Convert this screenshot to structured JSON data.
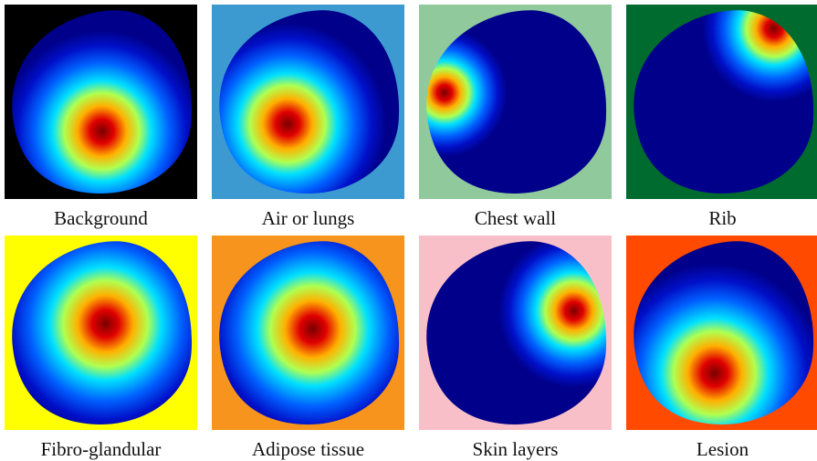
{
  "panels": [
    {
      "caption": "Background"
    },
    {
      "caption": "Air or lungs"
    },
    {
      "caption": "Chest wall"
    },
    {
      "caption": "Rib"
    },
    {
      "caption": "Fibro-glandular"
    },
    {
      "caption": "Adipose tissue"
    },
    {
      "caption": "Skin layers"
    },
    {
      "caption": "Lesion"
    }
  ]
}
